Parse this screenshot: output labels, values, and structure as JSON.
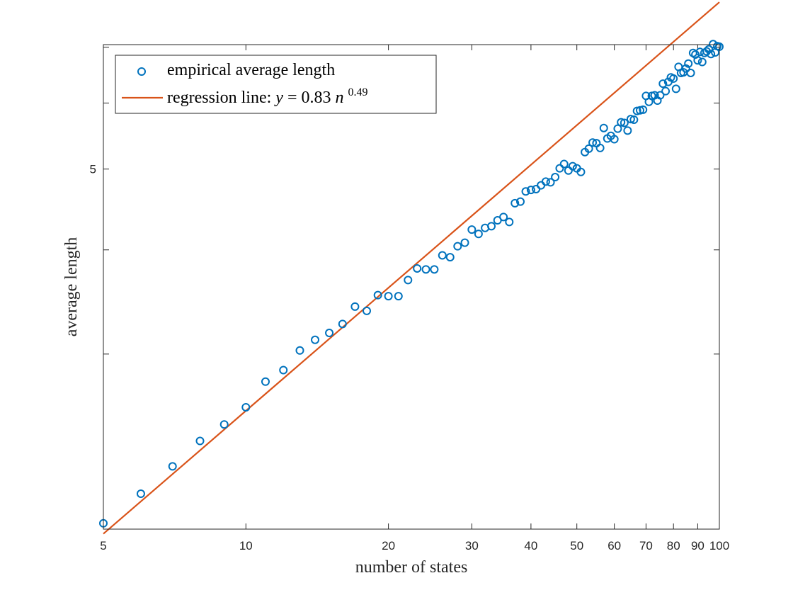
{
  "chart_data": {
    "type": "scatter",
    "xscale": "log",
    "yscale": "log",
    "xlabel": "number of states",
    "ylabel": "average length",
    "xlim": [
      5,
      100
    ],
    "ylim": [
      1.85,
      7.05
    ],
    "xticks": [
      5,
      10,
      20,
      30,
      40,
      50,
      60,
      70,
      80,
      90,
      100
    ],
    "xticklabels": [
      "5",
      "10",
      "20",
      "30",
      "40",
      "50",
      "60",
      "70",
      "80",
      "90",
      "100"
    ],
    "yticks": [
      3,
      4,
      5,
      6,
      7
    ],
    "yticklabels": [
      "",
      "",
      "5",
      "",
      ""
    ],
    "grid": false,
    "legend_location": "top-left",
    "series": [
      {
        "name": "empirical average length",
        "kind": "scatter",
        "marker": "circle",
        "color": "#0072BD",
        "x": [
          5,
          6,
          7,
          8,
          9,
          10,
          11,
          12,
          13,
          14,
          15,
          16,
          17,
          18,
          19,
          20,
          21,
          22,
          23,
          24,
          25,
          26,
          27,
          28,
          29,
          30,
          31,
          32,
          33,
          34,
          35,
          36,
          37,
          38,
          39,
          40,
          41,
          42,
          43,
          44,
          45,
          46,
          47,
          48,
          49,
          50,
          51,
          52,
          53,
          54,
          55,
          56,
          57,
          58,
          59,
          60,
          61,
          62,
          63,
          64,
          65,
          66,
          67,
          68,
          69,
          70,
          71,
          72,
          73,
          74,
          75,
          76,
          77,
          78,
          79,
          80,
          81,
          82,
          83,
          84,
          85,
          86,
          87,
          88,
          89,
          90,
          91,
          92,
          93,
          94,
          95,
          96,
          97,
          98,
          99,
          100
        ],
        "y": [
          1.88,
          2.04,
          2.2,
          2.36,
          2.47,
          2.59,
          2.78,
          2.87,
          3.03,
          3.12,
          3.18,
          3.26,
          3.42,
          3.38,
          3.53,
          3.52,
          3.52,
          3.68,
          3.8,
          3.79,
          3.79,
          3.94,
          3.92,
          4.04,
          4.08,
          4.23,
          4.18,
          4.25,
          4.27,
          4.34,
          4.38,
          4.32,
          4.55,
          4.57,
          4.7,
          4.72,
          4.73,
          4.78,
          4.83,
          4.82,
          4.89,
          5.01,
          5.07,
          4.98,
          5.04,
          5.01,
          4.96,
          5.24,
          5.29,
          5.38,
          5.37,
          5.3,
          5.6,
          5.44,
          5.48,
          5.43,
          5.59,
          5.69,
          5.68,
          5.56,
          5.74,
          5.73,
          5.87,
          5.88,
          5.89,
          6.12,
          6.02,
          6.12,
          6.13,
          6.04,
          6.13,
          6.33,
          6.2,
          6.36,
          6.44,
          6.42,
          6.24,
          6.63,
          6.52,
          6.53,
          6.6,
          6.69,
          6.52,
          6.89,
          6.86,
          6.75,
          6.91,
          6.72,
          6.89,
          6.92,
          6.96,
          6.87,
          7.06,
          6.9,
          7.02,
          7.01
        ]
      },
      {
        "name": "regression line: y = 0.83n^0.49",
        "kind": "line",
        "color": "#D95319",
        "coefficient": 0.83,
        "exponent": 0.49,
        "x_range": [
          5,
          100
        ]
      }
    ],
    "legend": {
      "scatter_label": "empirical average length",
      "line_label_prefix": "regression line: ",
      "line_formula_y": "y",
      "line_formula_eq": " = 0.83",
      "line_formula_n": "n",
      "line_formula_exp": "0.49"
    }
  }
}
